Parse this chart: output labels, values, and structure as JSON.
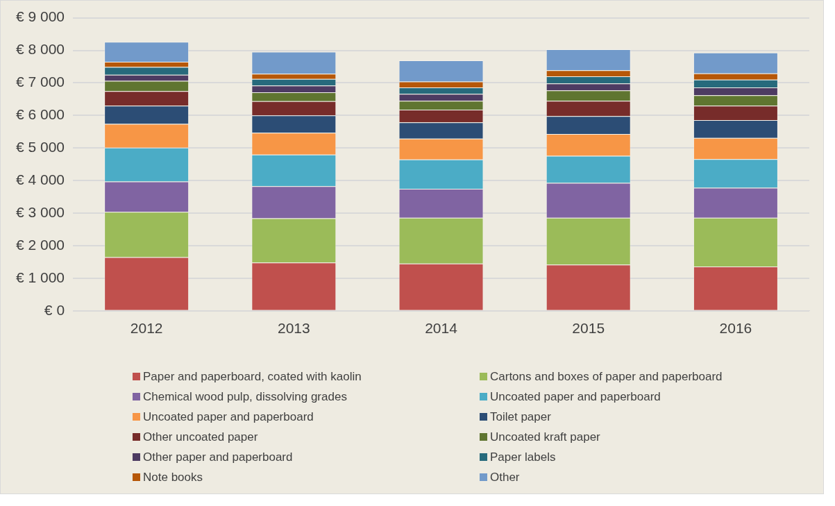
{
  "chart_data": {
    "type": "bar",
    "stacked": true,
    "categories": [
      "2012",
      "2013",
      "2014",
      "2015",
      "2016"
    ],
    "ylim": [
      0,
      9000
    ],
    "yticks": [
      {
        "value": 0,
        "label": "€ 0"
      },
      {
        "value": 1000,
        "label": "€ 1 000"
      },
      {
        "value": 2000,
        "label": "€ 2 000"
      },
      {
        "value": 3000,
        "label": "€ 3 000"
      },
      {
        "value": 4000,
        "label": "€ 4 000"
      },
      {
        "value": 5000,
        "label": "€ 5 000"
      },
      {
        "value": 6000,
        "label": "€ 6 000"
      },
      {
        "value": 7000,
        "label": "€ 7 000"
      },
      {
        "value": 8000,
        "label": "€ 8 000"
      },
      {
        "value": 9000,
        "label": "€ 9 000"
      }
    ],
    "grid": "y",
    "legend": "bottom",
    "series": [
      {
        "name": "Paper and paperboard, coated  with kaolin",
        "color": "#c0504d",
        "values": [
          1650,
          1480,
          1450,
          1420,
          1360
        ]
      },
      {
        "name": "Cartons and boxes of paper and paperboard",
        "color": "#9bbb59",
        "values": [
          1390,
          1360,
          1410,
          1440,
          1500
        ]
      },
      {
        "name": "Chemical wood pulp, dissolving grades",
        "color": "#8064a2",
        "values": [
          930,
          990,
          890,
          1070,
          920
        ]
      },
      {
        "name": "Uncoated paper and paperboard",
        "color": "#4bacc6",
        "values": [
          1040,
          970,
          900,
          830,
          880
        ]
      },
      {
        "name": "Uncoated paper and paperboard",
        "color": "#f79646",
        "values": [
          730,
          670,
          640,
          670,
          650
        ]
      },
      {
        "name": "Toilet paper",
        "color": "#2c4d75",
        "values": [
          560,
          530,
          500,
          550,
          550
        ]
      },
      {
        "name": "Other uncoated paper",
        "color": "#772c2a",
        "values": [
          450,
          440,
          390,
          470,
          440
        ]
      },
      {
        "name": "Uncoated kraft paper",
        "color": "#5f7530",
        "values": [
          310,
          270,
          270,
          320,
          320
        ]
      },
      {
        "name": "Other paper and paperboard",
        "color": "#4d3b62",
        "values": [
          190,
          210,
          210,
          210,
          240
        ]
      },
      {
        "name": "Paper labels",
        "color": "#276a7c",
        "values": [
          240,
          200,
          200,
          220,
          240
        ]
      },
      {
        "name": "Note books",
        "color": "#b65708",
        "values": [
          160,
          160,
          180,
          190,
          190
        ]
      },
      {
        "name": "Other",
        "color": "#729aca",
        "values": [
          610,
          680,
          650,
          640,
          640
        ]
      }
    ]
  }
}
